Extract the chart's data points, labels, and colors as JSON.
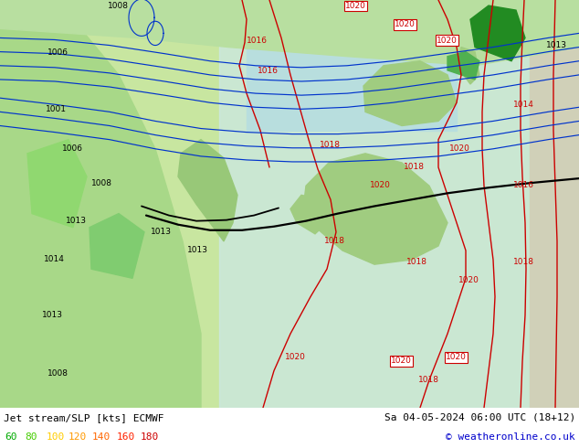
{
  "title_left": "Jet stream/SLP [kts] ECMWF",
  "title_right": "Sa 04-05-2024 06:00 UTC (18+12)",
  "copyright": "© weatheronline.co.uk",
  "legend_values": [
    "60",
    "80",
    "100",
    "120",
    "140",
    "160",
    "180"
  ],
  "legend_colors": [
    "#00aa00",
    "#44cc00",
    "#ffcc00",
    "#ff9900",
    "#ff6600",
    "#ff2200",
    "#cc0000"
  ],
  "bg_color": "#c8e6a0",
  "fig_width": 6.34,
  "fig_height": 4.9,
  "dpi": 100,
  "map_bg": "#c8e6a0",
  "ocean_cyan": "#c0e8e8",
  "land_green": "#a0cc80",
  "dark_green": "#228B22",
  "bar_bg": "#ffffff",
  "slp_red": "#cc0000",
  "jet_blue": "#0033cc",
  "jet_black": "#000000"
}
